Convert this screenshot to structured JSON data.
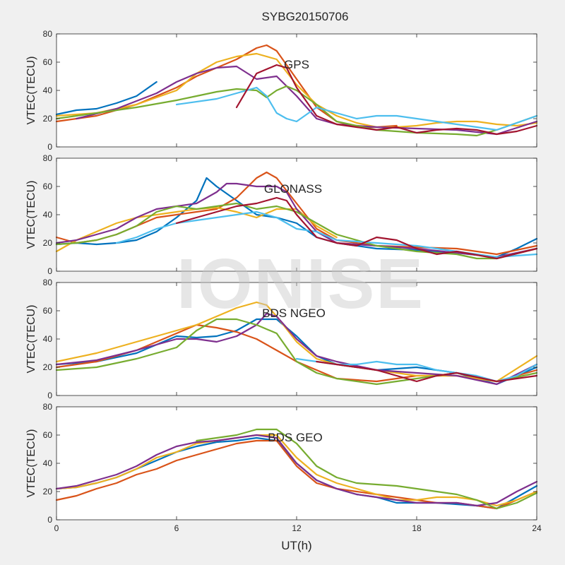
{
  "title": "SYBG20150706",
  "xlabel": "UT(h)",
  "watermark": "IONISE",
  "chart_data": [
    {
      "type": "line",
      "panel_label": "GPS",
      "ylabel": "VTEC(TECU)",
      "xlim": [
        0,
        24
      ],
      "ylim": [
        0,
        80
      ],
      "xticks": [
        0,
        6,
        12,
        18,
        24
      ],
      "yticks": [
        0,
        20,
        40,
        60,
        80
      ],
      "series": [
        {
          "color": "#0072BD",
          "x": [
            0,
            1,
            2,
            3,
            4,
            5
          ],
          "y": [
            23,
            26,
            27,
            31,
            36,
            46
          ]
        },
        {
          "color": "#D95319",
          "x": [
            0,
            2,
            4,
            6,
            7,
            8,
            9,
            10,
            10.5,
            11,
            12,
            13,
            14,
            15,
            16,
            17
          ],
          "y": [
            18,
            22,
            30,
            42,
            50,
            56,
            62,
            70,
            72,
            68,
            48,
            28,
            18,
            14,
            14,
            15
          ]
        },
        {
          "color": "#EDB120",
          "x": [
            0,
            2,
            4,
            6,
            7,
            8,
            9,
            10,
            11,
            12,
            13,
            14,
            15,
            16,
            17,
            18,
            19,
            20,
            21,
            22,
            23,
            24
          ],
          "y": [
            22,
            24,
            30,
            40,
            52,
            60,
            64,
            66,
            62,
            44,
            30,
            22,
            17,
            14,
            14,
            15,
            17,
            18,
            18,
            16,
            15,
            17
          ]
        },
        {
          "color": "#7E2F8E",
          "x": [
            1,
            3,
            5,
            6,
            7,
            8,
            9,
            10,
            11,
            12,
            13,
            14,
            16,
            18,
            20,
            22,
            24
          ],
          "y": [
            20,
            27,
            38,
            46,
            52,
            56,
            57,
            48,
            50,
            36,
            20,
            16,
            14,
            13,
            12,
            9,
            18
          ]
        },
        {
          "color": "#77AC30",
          "x": [
            0,
            2,
            4,
            6,
            7,
            8,
            9,
            10,
            10.5,
            11,
            11.5,
            12,
            13,
            14,
            16,
            18,
            20,
            21,
            22,
            24
          ],
          "y": [
            20,
            24,
            28,
            33,
            36,
            39,
            41,
            40,
            35,
            40,
            43,
            40,
            30,
            18,
            12,
            10,
            9,
            8,
            12,
            22
          ]
        },
        {
          "color": "#4DBEEE",
          "x": [
            6,
            8,
            9,
            10,
            10.5,
            11,
            11.5,
            12,
            13,
            15,
            16,
            17,
            18,
            19,
            20,
            22,
            24
          ],
          "y": [
            30,
            34,
            38,
            42,
            36,
            24,
            20,
            18,
            28,
            20,
            22,
            22,
            20,
            18,
            16,
            12,
            22
          ]
        },
        {
          "color": "#A2142F",
          "x": [
            9,
            10,
            11,
            11.5,
            12,
            13,
            14,
            15,
            16,
            17,
            18,
            19,
            20,
            21,
            22,
            23,
            24
          ],
          "y": [
            28,
            52,
            58,
            56,
            42,
            22,
            16,
            14,
            12,
            14,
            10,
            12,
            13,
            12,
            9,
            11,
            15
          ]
        }
      ]
    },
    {
      "type": "line",
      "panel_label": "GLONASS",
      "ylabel": "VTEC(TECU)",
      "xlim": [
        0,
        24
      ],
      "ylim": [
        0,
        80
      ],
      "xticks": [
        0,
        6,
        12,
        18,
        24
      ],
      "yticks": [
        0,
        20,
        40,
        60,
        80
      ],
      "series": [
        {
          "color": "#0072BD",
          "x": [
            0,
            1,
            2,
            3,
            4,
            4.5,
            5,
            6,
            7,
            7.5,
            8,
            9,
            10,
            11,
            12,
            13,
            14,
            16,
            18,
            20,
            22,
            23,
            24
          ],
          "y": [
            19,
            20,
            19,
            20,
            22,
            25,
            28,
            38,
            50,
            66,
            60,
            50,
            40,
            38,
            34,
            24,
            20,
            16,
            15,
            13,
            10,
            16,
            23
          ]
        },
        {
          "color": "#D95319",
          "x": [
            0,
            1,
            2,
            3,
            4,
            5,
            6,
            7,
            8,
            9,
            10,
            10.5,
            11,
            12,
            13,
            14,
            16,
            18,
            20,
            22,
            24
          ],
          "y": [
            24,
            20,
            22,
            26,
            32,
            38,
            40,
            42,
            44,
            52,
            66,
            70,
            66,
            48,
            30,
            22,
            18,
            17,
            16,
            12,
            18
          ]
        },
        {
          "color": "#EDB120",
          "x": [
            0,
            1,
            2,
            3,
            4,
            5,
            6,
            7,
            8,
            9,
            10,
            11,
            12,
            13,
            14
          ],
          "y": [
            14,
            22,
            28,
            34,
            38,
            40,
            42,
            44,
            45,
            42,
            38,
            44,
            44,
            32,
            24
          ]
        },
        {
          "color": "#7E2F8E",
          "x": [
            0,
            1,
            2,
            3,
            4,
            5,
            6,
            7,
            8,
            8.5,
            9,
            10,
            11,
            11.5,
            12,
            13,
            14,
            16,
            18,
            20,
            22,
            24
          ],
          "y": [
            20,
            22,
            26,
            30,
            38,
            44,
            46,
            48,
            56,
            62,
            62,
            60,
            60,
            56,
            44,
            28,
            20,
            18,
            16,
            13,
            10,
            16
          ]
        },
        {
          "color": "#77AC30",
          "x": [
            0,
            1,
            2,
            3,
            4,
            5,
            6,
            7,
            8,
            9,
            10,
            11,
            12,
            13,
            14,
            16,
            18,
            20,
            21,
            22,
            24
          ],
          "y": [
            19,
            20,
            22,
            26,
            32,
            42,
            46,
            44,
            46,
            48,
            44,
            46,
            42,
            34,
            26,
            18,
            14,
            12,
            9,
            9,
            16
          ]
        },
        {
          "color": "#4DBEEE",
          "x": [
            3,
            4,
            5,
            6,
            7,
            8,
            9,
            10,
            11,
            12,
            13,
            14,
            16,
            18,
            20,
            21,
            22,
            24
          ],
          "y": [
            20,
            24,
            30,
            34,
            36,
            38,
            40,
            42,
            38,
            30,
            28,
            22,
            20,
            18,
            14,
            12,
            10,
            12
          ]
        },
        {
          "color": "#A2142F",
          "x": [
            6,
            7,
            8,
            9,
            10,
            10.5,
            11,
            11.5,
            12,
            13,
            14,
            15,
            16,
            17,
            18,
            19,
            20,
            22,
            24
          ],
          "y": [
            34,
            38,
            42,
            46,
            48,
            50,
            52,
            50,
            40,
            24,
            20,
            18,
            24,
            22,
            16,
            12,
            14,
            9,
            16
          ]
        }
      ]
    },
    {
      "type": "line",
      "panel_label": "BDS NGEO",
      "ylabel": "VTEC(TECU)",
      "xlim": [
        0,
        24
      ],
      "ylim": [
        0,
        80
      ],
      "xticks": [
        0,
        6,
        12,
        18,
        24
      ],
      "yticks": [
        0,
        20,
        40,
        60,
        80
      ],
      "series": [
        {
          "color": "#0072BD",
          "x": [
            0,
            2,
            4,
            6,
            7,
            8,
            9,
            10,
            11,
            12,
            13,
            14,
            15,
            16,
            18,
            20,
            22,
            24
          ],
          "y": [
            22,
            24,
            30,
            42,
            41,
            42,
            46,
            54,
            54,
            42,
            28,
            22,
            20,
            18,
            20,
            16,
            8,
            20
          ]
        },
        {
          "color": "#D95319",
          "x": [
            0,
            2,
            4,
            6,
            7,
            8,
            9,
            10,
            11,
            12,
            13,
            14,
            16,
            18,
            20,
            22,
            24
          ],
          "y": [
            20,
            24,
            32,
            44,
            50,
            48,
            45,
            40,
            32,
            24,
            18,
            12,
            10,
            14,
            14,
            10,
            18
          ]
        },
        {
          "color": "#EDB120",
          "x": [
            0,
            2,
            4,
            6,
            7,
            8,
            9,
            10,
            10.5,
            11,
            12,
            13,
            14,
            16,
            18,
            20,
            22,
            24
          ],
          "y": [
            24,
            30,
            38,
            46,
            50,
            56,
            62,
            66,
            64,
            56,
            38,
            26,
            22,
            18,
            14,
            14,
            10,
            28
          ]
        },
        {
          "color": "#7E2F8E",
          "x": [
            0,
            2,
            4,
            6,
            7,
            8,
            9,
            10,
            10.5,
            11,
            12,
            13,
            14,
            16,
            18,
            20,
            22,
            24
          ],
          "y": [
            22,
            25,
            32,
            40,
            40,
            38,
            42,
            50,
            58,
            56,
            40,
            28,
            24,
            18,
            16,
            14,
            8,
            22
          ]
        },
        {
          "color": "#77AC30",
          "x": [
            0,
            2,
            4,
            6,
            7,
            8,
            9,
            10,
            11,
            12,
            13,
            14,
            16,
            18,
            20,
            22,
            24
          ],
          "y": [
            18,
            20,
            26,
            34,
            46,
            54,
            54,
            50,
            44,
            24,
            16,
            12,
            8,
            12,
            16,
            10,
            16
          ]
        },
        {
          "color": "#4DBEEE",
          "x": [
            12,
            13,
            14,
            15,
            16,
            17,
            18,
            19,
            20,
            21,
            22,
            23,
            24
          ],
          "y": [
            26,
            24,
            22,
            22,
            24,
            22,
            22,
            18,
            16,
            14,
            10,
            14,
            22
          ]
        },
        {
          "color": "#A2142F",
          "x": [
            13,
            14,
            15,
            16,
            17,
            18,
            19,
            20,
            22,
            24
          ],
          "y": [
            24,
            22,
            20,
            18,
            14,
            10,
            14,
            16,
            10,
            14
          ]
        }
      ]
    },
    {
      "type": "line",
      "panel_label": "BDS GEO",
      "ylabel": "VTEC(TECU)",
      "xlim": [
        0,
        24
      ],
      "ylim": [
        0,
        80
      ],
      "xticks": [
        0,
        6,
        12,
        18,
        24
      ],
      "yticks": [
        0,
        20,
        40,
        60,
        80
      ],
      "series": [
        {
          "color": "#0072BD",
          "x": [
            0,
            1,
            2,
            3,
            4,
            5,
            6,
            7,
            8,
            9,
            10,
            11,
            12,
            13,
            14,
            15,
            16,
            17,
            18,
            19,
            20,
            21,
            22,
            23,
            24
          ],
          "y": [
            22,
            23,
            26,
            30,
            36,
            42,
            48,
            52,
            55,
            56,
            58,
            56,
            40,
            28,
            22,
            18,
            16,
            12,
            12,
            12,
            11,
            10,
            8,
            16,
            24
          ]
        },
        {
          "color": "#D95319",
          "x": [
            0,
            1,
            2,
            3,
            4,
            5,
            6,
            7,
            8,
            9,
            10,
            11,
            12,
            13,
            14,
            15,
            16,
            17,
            18,
            19,
            20,
            21,
            22,
            23,
            24
          ],
          "y": [
            14,
            17,
            22,
            26,
            32,
            36,
            42,
            46,
            50,
            54,
            56,
            56,
            38,
            26,
            22,
            20,
            18,
            16,
            14,
            12,
            12,
            10,
            8,
            14,
            20
          ]
        },
        {
          "color": "#EDB120",
          "x": [
            0,
            1,
            2,
            3,
            4,
            5,
            6,
            7,
            8,
            9,
            10,
            11,
            12,
            13,
            14,
            15,
            16,
            17,
            18,
            19,
            20,
            21,
            22,
            23,
            24
          ],
          "y": [
            22,
            23,
            26,
            30,
            36,
            44,
            48,
            54,
            56,
            58,
            60,
            60,
            44,
            32,
            26,
            22,
            18,
            14,
            14,
            16,
            16,
            14,
            10,
            14,
            20
          ]
        },
        {
          "color": "#7E2F8E",
          "x": [
            0,
            1,
            2,
            3,
            4,
            5,
            6,
            7,
            8,
            9,
            10,
            11,
            12,
            13,
            14,
            15,
            16,
            17,
            18,
            19,
            20,
            21,
            22,
            23,
            24
          ],
          "y": [
            22,
            24,
            28,
            32,
            38,
            46,
            52,
            55,
            56,
            58,
            60,
            58,
            40,
            28,
            22,
            18,
            16,
            14,
            12,
            12,
            12,
            10,
            12,
            20,
            27
          ]
        },
        {
          "color": "#77AC30",
          "x": [
            7,
            8,
            9,
            10,
            11,
            12,
            13,
            14,
            15,
            16,
            17,
            18,
            19,
            20,
            21,
            22,
            23,
            24
          ],
          "y": [
            56,
            58,
            60,
            64,
            64,
            54,
            38,
            30,
            26,
            25,
            24,
            22,
            20,
            18,
            14,
            8,
            12,
            19
          ]
        }
      ]
    }
  ]
}
